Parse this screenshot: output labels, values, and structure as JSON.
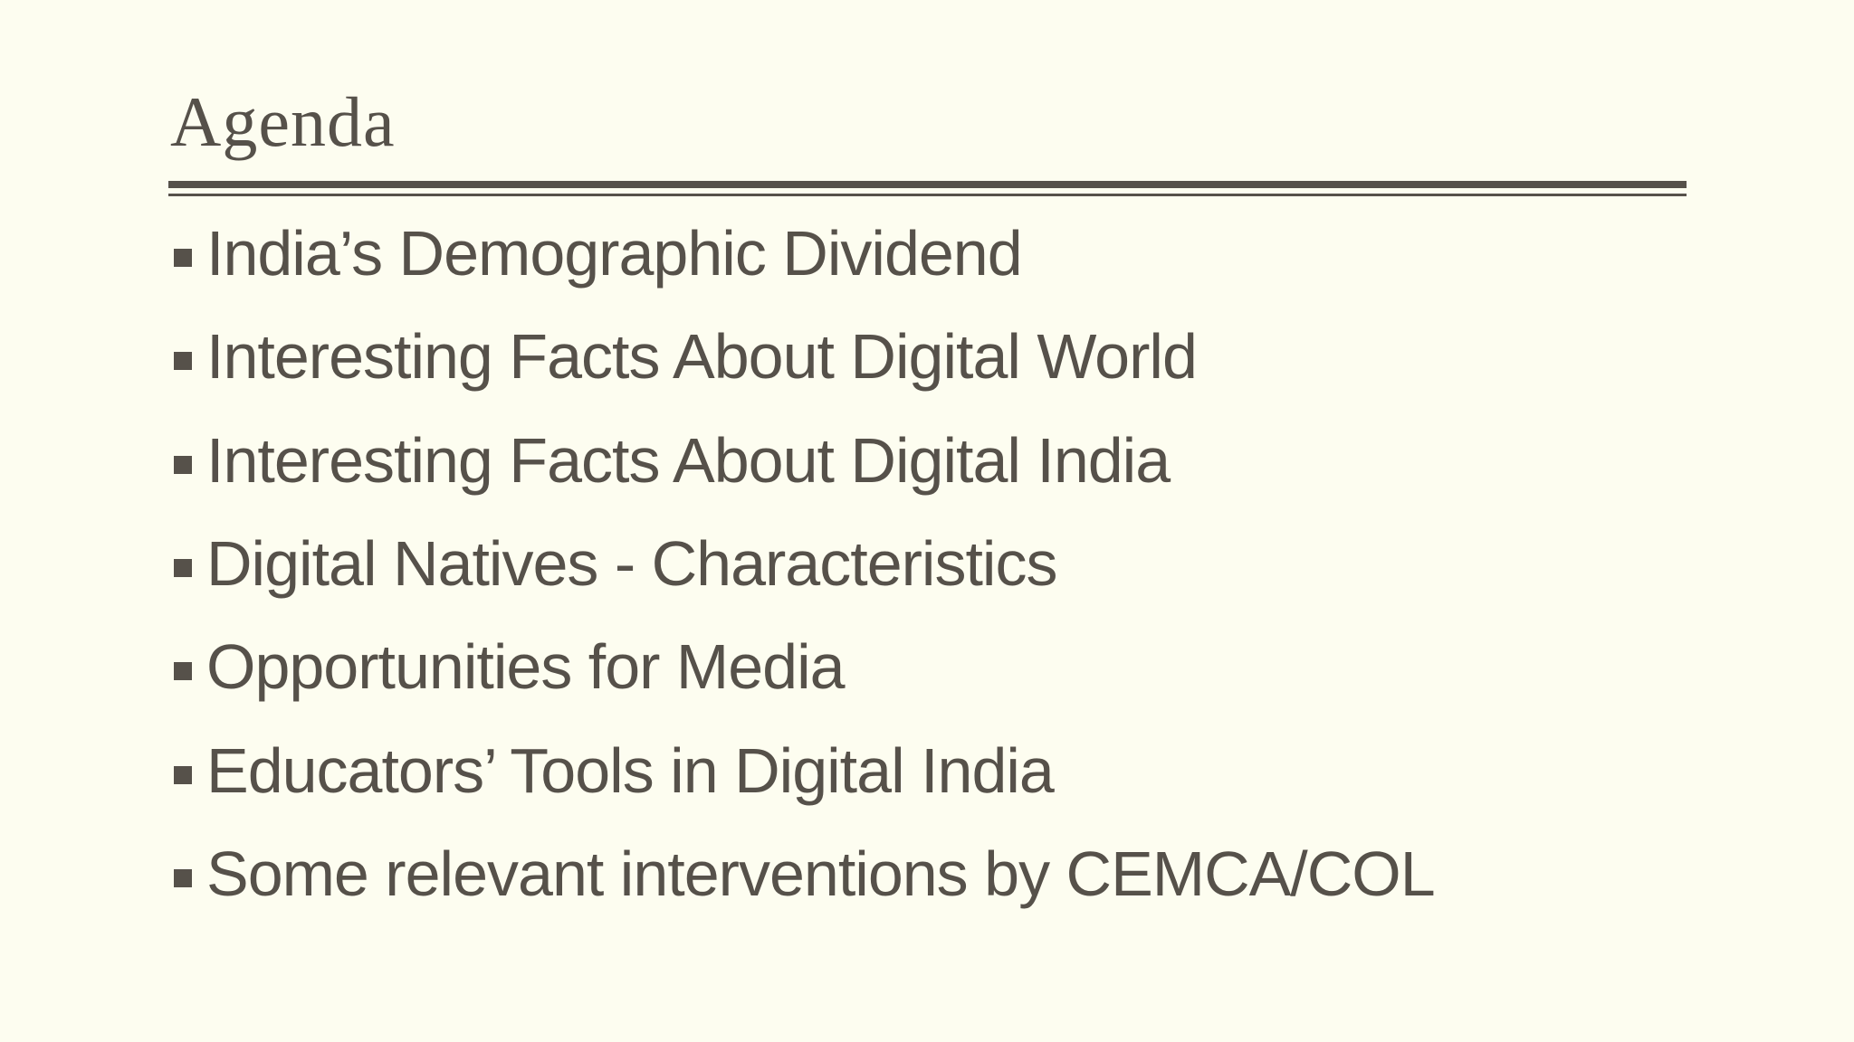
{
  "slide": {
    "title": "Agenda",
    "bullets": [
      "India’s Demographic Dividend",
      "Interesting Facts About Digital World",
      "Interesting Facts About Digital India",
      "Digital Natives - Characteristics",
      "Opportunities for Media",
      "Educators’ Tools in Digital India",
      "Some relevant interventions by CEMCA/COL"
    ],
    "colors": {
      "background": "#fdfdf0",
      "text": "#56514a",
      "rule": "#56514a"
    }
  }
}
